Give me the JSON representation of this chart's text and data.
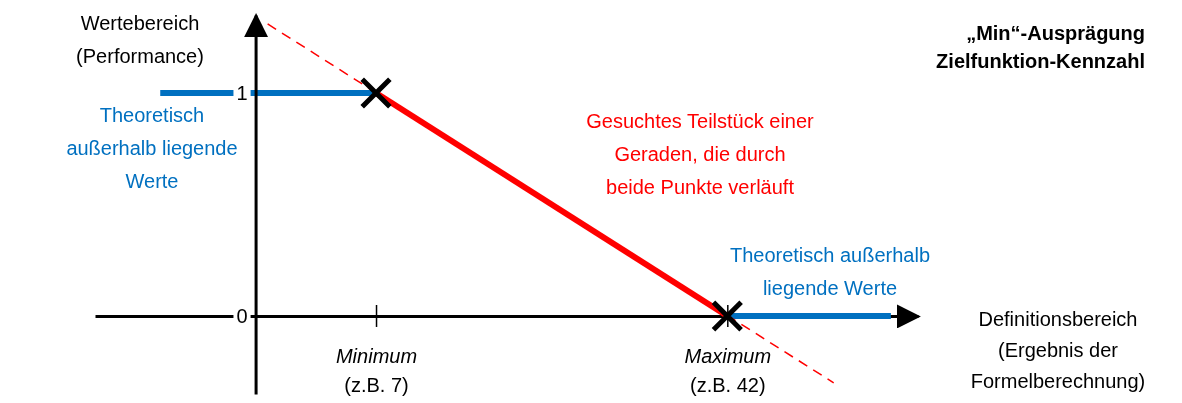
{
  "chart_data": {
    "type": "line",
    "title": "„Min“-Ausprägung\nZielfunktion-Kennzahl",
    "xlabel": "Definitionsbereich\n(Ergebnis der\nFormelberechnung)",
    "ylabel": "Wertebereich\n(Performance)",
    "xlim": [
      -21,
      61
    ],
    "ylim": [
      -0.35,
      1.35
    ],
    "xticks": [
      {
        "value": 7,
        "label": "Minimum\n(z.B. 7)"
      },
      {
        "value": 42,
        "label": "Maximum\n(z.B. 42)"
      }
    ],
    "yticks": [
      0,
      1
    ],
    "ref_lines": [
      {
        "axis": "x",
        "value": -5,
        "label": null
      }
    ],
    "grid": false,
    "series": [
      {
        "color": "#0070c0",
        "x": [
          -14.5,
          7
        ],
        "values": [
          1,
          1
        ],
        "line_style": "solid"
      },
      {
        "color": "#ff0000",
        "x": [
          7,
          42
        ],
        "values": [
          1,
          0
        ],
        "line_style": "solid"
      },
      {
        "color": "#0070c0",
        "x": [
          42,
          58.3
        ],
        "values": [
          0,
          0
        ],
        "line_style": "solid"
      },
      {
        "color": "#ff0000",
        "x": [
          -3.8,
          52.6
        ],
        "values": [
          1.31,
          -0.3
        ],
        "line_style": "dashed"
      },
      {
        "type": "scatter",
        "color": "#000000",
        "x": [
          7,
          42
        ],
        "values": [
          1,
          0
        ],
        "marker": "cross"
      }
    ],
    "annotations": [
      "Theoretisch\naußerhalb liegende\nWerte",
      "Gesuchtes Teilstück einer\nGeraden, die durch\nbeide Punkte verläuft",
      "Theoretisch außerhalb\nliegende Werte"
    ]
  }
}
